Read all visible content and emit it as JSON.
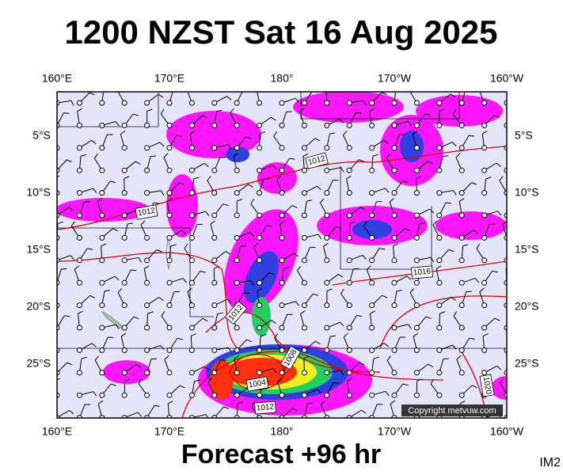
{
  "header": {
    "title": "1200 NZST Sat 16 Aug 2025"
  },
  "footer": {
    "caption": "Forecast +96 hr",
    "corner": "IM2"
  },
  "map": {
    "lon_labels": [
      "160°E",
      "170°E",
      "180°",
      "170°W",
      "160°W"
    ],
    "lat_labels": [
      "5°S",
      "10°S",
      "15°S",
      "20°S",
      "25°S"
    ],
    "isobar_labels": [
      "1012",
      "1012",
      "1016",
      "1012",
      "1008",
      "1004",
      "1012",
      "1020"
    ],
    "copyright": "Copyright metvuw.com"
  }
}
